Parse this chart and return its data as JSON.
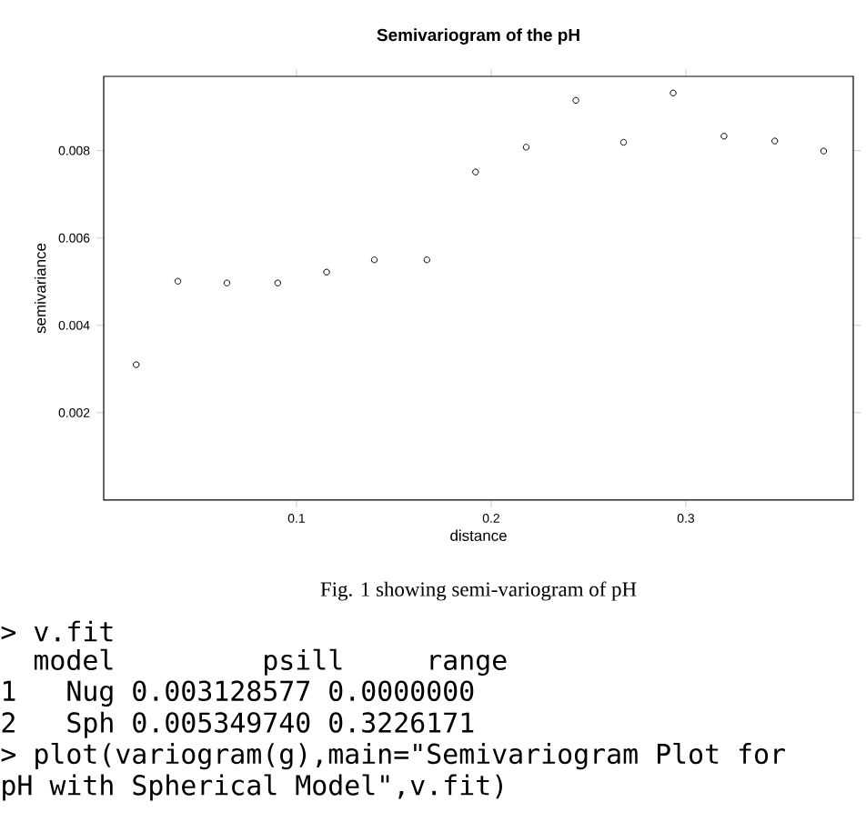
{
  "chart_data": {
    "type": "scatter",
    "title": "Semivariogram of the pH",
    "xlabel": "distance",
    "ylabel": "semivariance",
    "x": [
      0.0177,
      0.0391,
      0.0643,
      0.0904,
      0.1155,
      0.14,
      0.167,
      0.192,
      0.218,
      0.2435,
      0.268,
      0.2935,
      0.3196,
      0.3457,
      0.3708
    ],
    "values": [
      0.0031,
      0.00501,
      0.00497,
      0.00497,
      0.00522,
      0.0055,
      0.0055,
      0.00751,
      0.00808,
      0.00915,
      0.00819,
      0.00932,
      0.00833,
      0.00822,
      0.00799
    ],
    "color": "#000000",
    "marker": "circle",
    "xlim": [
      0.001,
      0.386
    ],
    "ylim": [
      0,
      0.0097
    ],
    "xticks": [
      0.1,
      0.2,
      0.3
    ],
    "yticks": [
      {
        "value": 0.002,
        "label": "0.002"
      },
      {
        "value": 0.004,
        "label": "0.004"
      },
      {
        "value": 0.006,
        "label": "0.006"
      },
      {
        "value": 0.008,
        "label": "0.008"
      }
    ],
    "annotations": [
      "Fig. 1 showing semi-variogram of pH",
      "> v.fit",
      "  model         psill     range",
      "1   Nug 0.003128577 0.0000000",
      "2   Sph 0.005349740 0.3226171",
      "> plot(variogram(g),main=\"Semivariogram Plot for",
      "pH with Spherical Model\",v.fit)"
    ]
  }
}
